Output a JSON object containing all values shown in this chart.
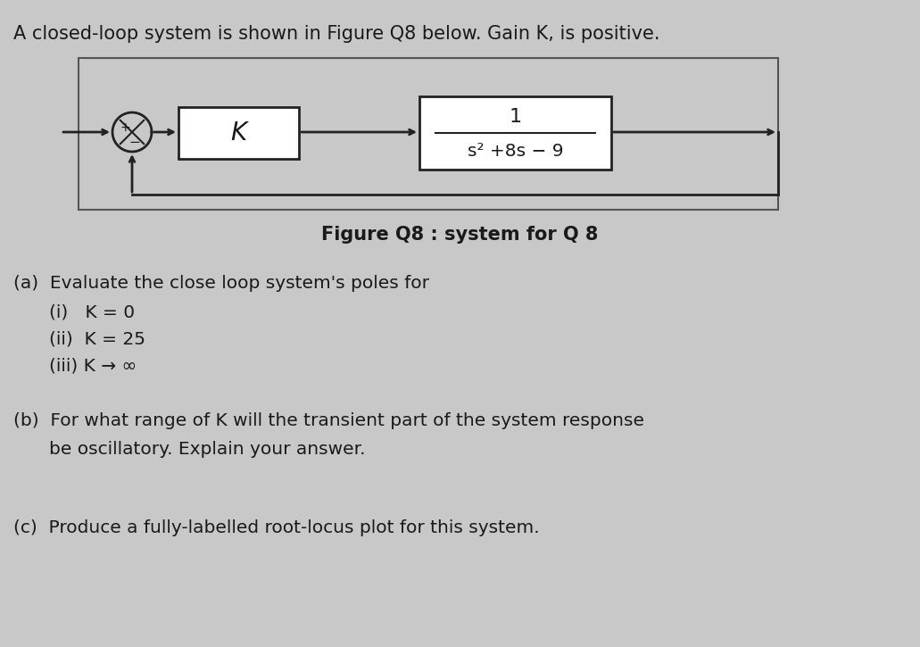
{
  "background_color": "#c8c8c8",
  "title_line": "A closed-loop system is shown in Figure Q8 below. Gain K, is positive.",
  "figure_caption": "Figure Q8 : system for Q 8",
  "part_a_header": "(a)  Evaluate the close loop system's poles for",
  "part_a_i": "(i)   K = 0",
  "part_a_ii": "(ii)  K = 25",
  "part_a_iii": "(iii) K → ∞",
  "part_b_header": "(b)  For what range of K will the transient part of the system response",
  "part_b_line2": "      be oscillatory. Explain your answer.",
  "part_c": "(c)  Produce a fully-labelled root-locus plot for this system.",
  "block_K_label": "K",
  "block_tf_num": "1",
  "block_tf_den": "s² +8s − 9",
  "text_color": "#1a1a1a",
  "block_bg": "#ffffff",
  "block_border": "#222222",
  "arrow_color": "#222222",
  "font_size_title": 15,
  "font_size_body": 14.5,
  "font_size_block": 15,
  "font_size_caption": 15
}
